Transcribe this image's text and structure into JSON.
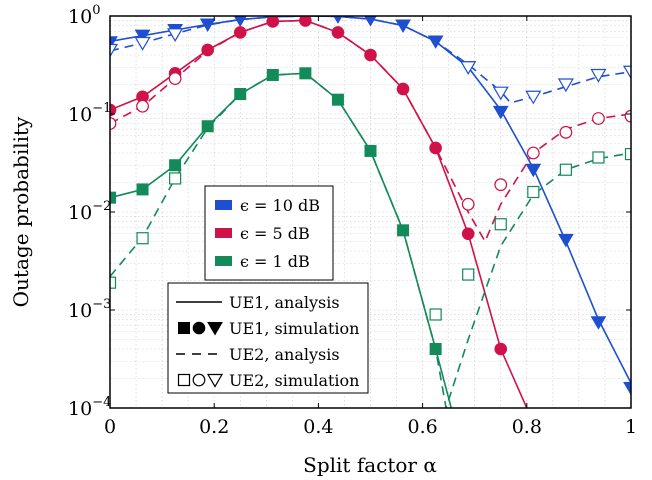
{
  "chart_data": {
    "type": "line",
    "xlabel": "Split factor α",
    "ylabel": "Outage probability",
    "x_ticks": [
      "0",
      "0.2",
      "0.4",
      "0.6",
      "0.8",
      "1"
    ],
    "y_ticks": [
      {
        "base": "10",
        "exp": "−4"
      },
      {
        "base": "10",
        "exp": "−3"
      },
      {
        "base": "10",
        "exp": "−2"
      },
      {
        "base": "10",
        "exp": "−1"
      },
      {
        "base": "10",
        "exp": "0"
      }
    ],
    "xlim": [
      0,
      1
    ],
    "ylim": [
      0.0001,
      1
    ],
    "y_scale": "log",
    "grid": true,
    "colors": {
      "blue": "#1f4fd1",
      "red": "#d0124a",
      "green": "#128a5a"
    },
    "legend_epsilon": {
      "placement": "center-left",
      "entries": [
        {
          "label": "ϵ = 10 dB",
          "color": "blue"
        },
        {
          "label": "ϵ = 5 dB",
          "color": "red"
        },
        {
          "label": "ϵ = 1 dB",
          "color": "green"
        }
      ]
    },
    "legend_lines": {
      "placement": "lower-left",
      "entries": [
        {
          "label": "UE1, analysis",
          "style": "solid"
        },
        {
          "label": "UE1, simulation",
          "style": "filled-markers"
        },
        {
          "label": "UE2, analysis",
          "style": "dashed"
        },
        {
          "label": "UE2, simulation",
          "style": "open-markers"
        }
      ]
    },
    "series": [
      {
        "color": "blue",
        "marker": "triangle",
        "user": "UE1",
        "kind": "analysis",
        "x": [
          0,
          0.0625,
          0.125,
          0.1875,
          0.25,
          0.3125,
          0.375,
          0.4375,
          0.5,
          0.5625,
          0.625,
          0.6875,
          0.75,
          0.8125,
          0.875,
          0.9375,
          1
        ],
        "y": [
          0.55,
          0.63,
          0.72,
          0.82,
          0.92,
          0.98,
          1.0,
          0.99,
          0.93,
          0.8,
          0.55,
          0.3,
          0.11,
          0.028,
          0.005,
          0.0008,
          0.00018
        ]
      },
      {
        "color": "blue",
        "marker": "triangle",
        "user": "UE1",
        "kind": "simulation",
        "x": [
          0,
          0.0625,
          0.125,
          0.1875,
          0.25,
          0.3125,
          0.375,
          0.4375,
          0.5,
          0.5625,
          0.625,
          0.6875,
          0.75,
          0.8125,
          0.875,
          0.9375,
          1
        ],
        "y": [
          0.54,
          0.63,
          0.72,
          0.82,
          0.92,
          0.98,
          1.0,
          0.99,
          0.93,
          0.8,
          0.55,
          0.3,
          0.105,
          0.027,
          0.0052,
          0.00075,
          0.00016
        ]
      },
      {
        "color": "blue",
        "marker": "triangle",
        "user": "UE2",
        "kind": "analysis",
        "x": [
          0,
          0.0625,
          0.125,
          0.1875,
          0.25,
          0.3125,
          0.375,
          0.4375,
          0.5,
          0.5625,
          0.625,
          0.6875,
          0.75,
          0.7688,
          0.8125,
          0.875,
          0.9375,
          1
        ],
        "y": [
          0.44,
          0.53,
          0.66,
          0.81,
          0.92,
          0.98,
          1.0,
          0.99,
          0.93,
          0.8,
          0.55,
          0.32,
          0.17,
          0.13,
          0.15,
          0.19,
          0.24,
          0.27
        ]
      },
      {
        "color": "blue",
        "marker": "triangle",
        "user": "UE2",
        "kind": "simulation",
        "x": [
          0,
          0.0625,
          0.125,
          0.6875,
          0.75,
          0.8125,
          0.875,
          0.9375,
          1
        ],
        "y": [
          0.45,
          0.53,
          0.65,
          0.3,
          0.165,
          0.15,
          0.2,
          0.25,
          0.27
        ]
      },
      {
        "color": "red",
        "marker": "circle",
        "user": "UE1",
        "kind": "analysis",
        "x": [
          0,
          0.0625,
          0.125,
          0.1875,
          0.25,
          0.3125,
          0.375,
          0.4375,
          0.5,
          0.5625,
          0.625,
          0.6875,
          0.75,
          0.8
        ],
        "y": [
          0.11,
          0.15,
          0.26,
          0.45,
          0.68,
          0.88,
          0.9,
          0.68,
          0.4,
          0.18,
          0.045,
          0.006,
          0.0004,
          0.0001
        ]
      },
      {
        "color": "red",
        "marker": "circle",
        "user": "UE1",
        "kind": "simulation",
        "x": [
          0,
          0.0625,
          0.125,
          0.1875,
          0.25,
          0.3125,
          0.375,
          0.4375,
          0.5,
          0.5625,
          0.625,
          0.6875,
          0.75
        ],
        "y": [
          0.11,
          0.15,
          0.26,
          0.45,
          0.68,
          0.88,
          0.9,
          0.68,
          0.4,
          0.18,
          0.045,
          0.006,
          0.0004
        ]
      },
      {
        "color": "red",
        "marker": "circle",
        "user": "UE2",
        "kind": "analysis",
        "x": [
          0,
          0.0625,
          0.125,
          0.1875,
          0.25,
          0.3125,
          0.375,
          0.4375,
          0.5,
          0.5625,
          0.625,
          0.6875,
          0.72,
          0.75,
          0.8125,
          0.875,
          0.9375,
          1
        ],
        "y": [
          0.08,
          0.12,
          0.23,
          0.44,
          0.68,
          0.88,
          0.9,
          0.68,
          0.4,
          0.18,
          0.045,
          0.01,
          0.005,
          0.012,
          0.04,
          0.07,
          0.09,
          0.1
        ]
      },
      {
        "color": "red",
        "marker": "circle",
        "user": "UE2",
        "kind": "simulation",
        "x": [
          0,
          0.0625,
          0.125,
          0.6875,
          0.75,
          0.8125,
          0.875,
          0.9375,
          1
        ],
        "y": [
          0.08,
          0.12,
          0.23,
          0.012,
          0.019,
          0.04,
          0.065,
          0.09,
          0.095
        ]
      },
      {
        "color": "green",
        "marker": "square",
        "user": "UE1",
        "kind": "analysis",
        "x": [
          0,
          0.0625,
          0.125,
          0.1875,
          0.25,
          0.3125,
          0.375,
          0.4375,
          0.5,
          0.5625,
          0.625,
          0.655
        ],
        "y": [
          0.014,
          0.017,
          0.03,
          0.075,
          0.16,
          0.25,
          0.26,
          0.14,
          0.042,
          0.0065,
          0.0004,
          0.0001
        ]
      },
      {
        "color": "green",
        "marker": "square",
        "user": "UE1",
        "kind": "simulation",
        "x": [
          0,
          0.0625,
          0.125,
          0.1875,
          0.25,
          0.3125,
          0.375,
          0.4375,
          0.5,
          0.5625,
          0.625
        ],
        "y": [
          0.014,
          0.017,
          0.03,
          0.075,
          0.16,
          0.25,
          0.26,
          0.14,
          0.042,
          0.0065,
          0.0004
        ]
      },
      {
        "color": "green",
        "marker": "square",
        "user": "UE2",
        "kind": "analysis",
        "x": [
          0,
          0.0625,
          0.125,
          0.1875,
          0.25,
          0.3125,
          0.375,
          0.4375,
          0.5,
          0.5625,
          0.625,
          0.645,
          0.6875,
          0.75,
          0.8125,
          0.875,
          0.9375,
          1
        ],
        "y": [
          0.0022,
          0.0055,
          0.022,
          0.072,
          0.16,
          0.25,
          0.26,
          0.14,
          0.042,
          0.0065,
          0.0004,
          0.0001,
          0.0005,
          0.0045,
          0.015,
          0.027,
          0.035,
          0.04
        ]
      },
      {
        "color": "green",
        "marker": "square",
        "user": "UE2",
        "kind": "simulation",
        "x": [
          0,
          0.0625,
          0.125,
          0.625,
          0.6875,
          0.75,
          0.8125,
          0.875,
          0.9375,
          1
        ],
        "y": [
          0.0019,
          0.0054,
          0.022,
          0.0009,
          0.0023,
          0.0075,
          0.016,
          0.027,
          0.036,
          0.039
        ]
      }
    ]
  }
}
